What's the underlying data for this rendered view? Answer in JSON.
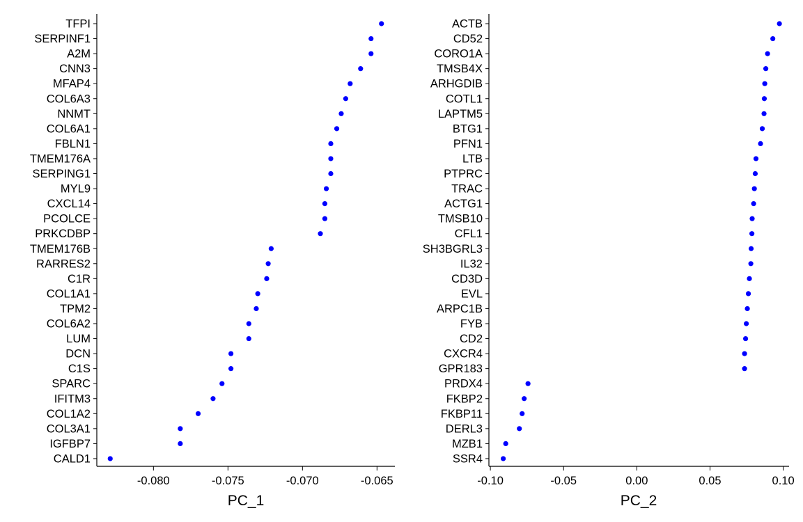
{
  "chart_data": [
    {
      "type": "scatter",
      "xlabel": "PC_1",
      "ylabel": "",
      "xlim": [
        -0.0838,
        -0.0638
      ],
      "xticks": [
        -0.08,
        -0.075,
        -0.07,
        -0.065
      ],
      "xtick_labels": [
        "-0.080",
        "-0.075",
        "-0.070",
        "-0.065"
      ],
      "grid": false,
      "legend": "none",
      "point_color": "#0000ff",
      "genes": [
        "TFPI",
        "SERPINF1",
        "A2M",
        "CNN3",
        "MFAP4",
        "COL6A3",
        "NNMT",
        "COL6A1",
        "FBLN1",
        "TMEM176A",
        "SERPING1",
        "MYL9",
        "CXCL14",
        "PCOLCE",
        "PRKCDBP",
        "TMEM176B",
        "RARRES2",
        "C1R",
        "COL1A1",
        "TPM2",
        "COL6A2",
        "LUM",
        "DCN",
        "C1S",
        "SPARC",
        "IFITM3",
        "COL1A2",
        "COL3A1",
        "IGFBP7",
        "CALD1"
      ],
      "values": [
        -0.0647,
        -0.0654,
        -0.0654,
        -0.0661,
        -0.0668,
        -0.0671,
        -0.0674,
        -0.0677,
        -0.0681,
        -0.0681,
        -0.0681,
        -0.0684,
        -0.0685,
        -0.0685,
        -0.0688,
        -0.0721,
        -0.0723,
        -0.0724,
        -0.073,
        -0.0731,
        -0.0736,
        -0.0736,
        -0.0748,
        -0.0748,
        -0.0754,
        -0.076,
        -0.077,
        -0.0782,
        -0.0782,
        -0.0829
      ]
    },
    {
      "type": "scatter",
      "xlabel": "PC_2",
      "ylabel": "",
      "xlim": [
        -0.101,
        0.104
      ],
      "xticks": [
        -0.1,
        -0.05,
        0.0,
        0.05,
        0.1
      ],
      "xtick_labels": [
        "-0.10",
        "-0.05",
        "0.00",
        "0.05",
        "0.10"
      ],
      "grid": false,
      "legend": "none",
      "point_color": "#0000ff",
      "genes": [
        "ACTB",
        "CD52",
        "CORO1A",
        "TMSB4X",
        "ARHGDIB",
        "COTL1",
        "LAPTM5",
        "BTG1",
        "PFN1",
        "LTB",
        "PTPRC",
        "TRAC",
        "ACTG1",
        "TMSB10",
        "CFL1",
        "SH3BGRL3",
        "IL32",
        "CD3D",
        "EVL",
        "ARPC1B",
        "FYB",
        "CD2",
        "CXCR4",
        "GPR183",
        "PRDX4",
        "FKBP2",
        "FKBP11",
        "DERL3",
        "MZB1",
        "SSR4"
      ],
      "values": [
        0.0974,
        0.0929,
        0.0893,
        0.0881,
        0.0874,
        0.0871,
        0.0869,
        0.0857,
        0.0845,
        0.0814,
        0.0809,
        0.0803,
        0.0798,
        0.0788,
        0.0786,
        0.0781,
        0.0779,
        0.0769,
        0.0762,
        0.0755,
        0.0748,
        0.0743,
        0.0736,
        0.0736,
        -0.0743,
        -0.0769,
        -0.0783,
        -0.0802,
        -0.0895,
        -0.0912
      ]
    }
  ]
}
